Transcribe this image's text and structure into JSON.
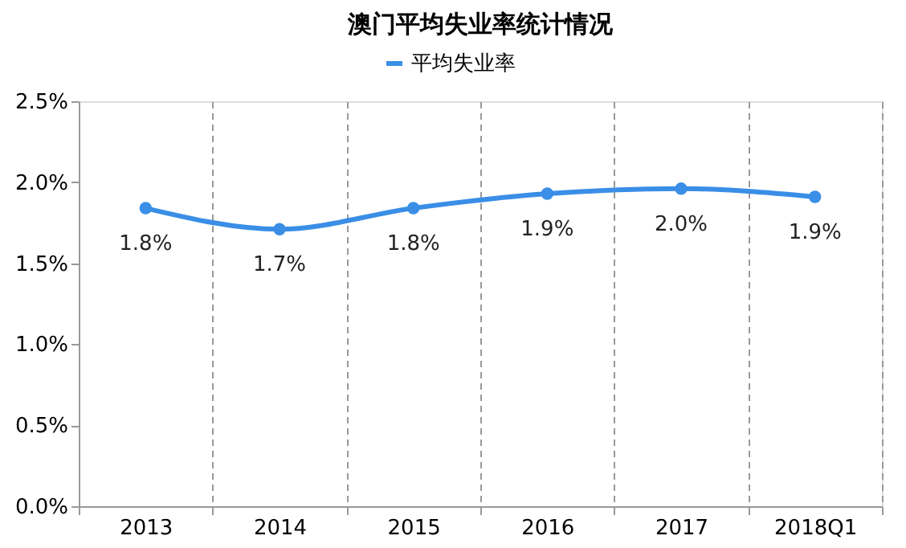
{
  "chart_data": {
    "type": "line",
    "title": "澳门平均失业率统计情况",
    "categories": [
      "2013",
      "2014",
      "2015",
      "2016",
      "2017",
      "2018Q1"
    ],
    "series": [
      {
        "name": "平均失业率",
        "color": "#3a8ee6",
        "values": [
          1.84,
          1.71,
          1.84,
          1.93,
          1.96,
          1.91
        ],
        "value_labels": [
          "1.8%",
          "1.7%",
          "1.8%",
          "1.9%",
          "2.0%",
          "1.9%"
        ]
      }
    ],
    "ylim": [
      0,
      2.5
    ],
    "yticks": [
      {
        "value": 0,
        "label": "0.0%"
      },
      {
        "value": 0.5,
        "label": "0.5%"
      },
      {
        "value": 1.0,
        "label": "1.0%"
      },
      {
        "value": 1.5,
        "label": "1.5%"
      },
      {
        "value": 2.0,
        "label": "2.0%"
      },
      {
        "value": 2.5,
        "label": "2.5%"
      }
    ],
    "grid": "x",
    "legend": "top",
    "marker": "circle",
    "line_style": "solid"
  }
}
